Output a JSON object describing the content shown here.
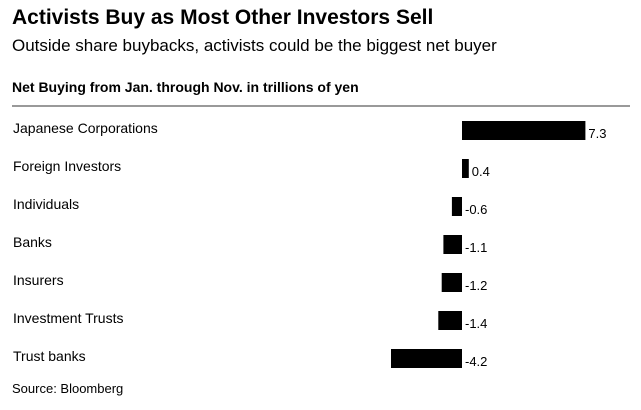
{
  "title": "Activists Buy as Most Other Investors Sell",
  "subtitle": "Outside share buybacks, activists could be the biggest net buyer",
  "source": "Source: Bloomberg",
  "colors": {
    "bar": "#000000",
    "rule": "#333333",
    "background": "#ffffff"
  },
  "chart_data": {
    "type": "bar",
    "orientation": "horizontal",
    "title": "Net Buying from Jan. through Nov. in trillions of yen",
    "xlabel": "",
    "ylabel": "",
    "grid": false,
    "legend": "none",
    "xlim": [
      -4.2,
      7.3
    ],
    "categories": [
      "Japanese Corporations",
      "Foreign Investors",
      "Individuals",
      "Banks",
      "Insurers",
      "Investment Trusts",
      "Trust banks"
    ],
    "values": [
      7.3,
      0.4,
      -0.6,
      -1.1,
      -1.2,
      -1.4,
      -4.2
    ],
    "value_labels": [
      "7.3",
      "0.4",
      "-0.6",
      "-1.1",
      "-1.2",
      "-1.4",
      "-4.2"
    ]
  }
}
